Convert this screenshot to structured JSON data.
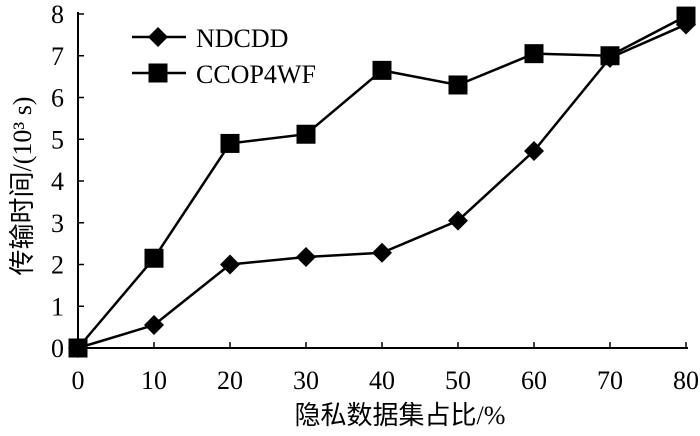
{
  "chart_data": {
    "type": "line",
    "x": [
      0,
      10,
      20,
      30,
      40,
      50,
      60,
      70,
      80
    ],
    "series": [
      {
        "name": "NDCDD",
        "marker": "diamond",
        "color": "#000000",
        "values": [
          0,
          0.55,
          2.0,
          2.18,
          2.28,
          3.05,
          4.72,
          6.95,
          7.75
        ]
      },
      {
        "name": "CCOP4WF",
        "marker": "square",
        "color": "#000000",
        "values": [
          0,
          2.15,
          4.9,
          5.12,
          6.65,
          6.3,
          7.05,
          7.0,
          7.95
        ]
      }
    ],
    "xlabel": "隐私数据集占比/%",
    "ylabel": "传输时间/(10³ s)",
    "xlim": [
      0,
      80
    ],
    "ylim": [
      0,
      8
    ],
    "xticks": [
      0,
      10,
      20,
      30,
      40,
      50,
      60,
      70,
      80
    ],
    "yticks": [
      0,
      1,
      2,
      3,
      4,
      5,
      6,
      7,
      8
    ],
    "grid": false,
    "legend": "top-left"
  }
}
